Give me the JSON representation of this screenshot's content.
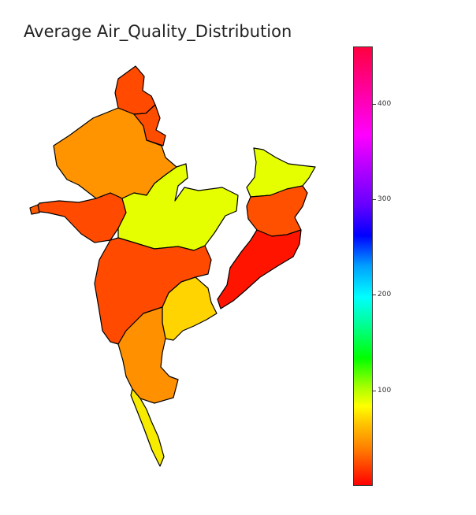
{
  "title": "Average Air_Quality_Distribution",
  "colorbar": {
    "vmin": 0,
    "vmax": 460,
    "ticks": [
      {
        "value": 100,
        "label": "100"
      },
      {
        "value": 200,
        "label": "200"
      },
      {
        "value": 300,
        "label": "300"
      },
      {
        "value": 400,
        "label": "400"
      }
    ],
    "colormap": "gist_rainbow_r"
  },
  "regions": [
    {
      "id": "jk",
      "value": 25,
      "color": "#ff4a00"
    },
    {
      "id": "hp",
      "value": 25,
      "color": "#ff4d00"
    },
    {
      "id": "rj",
      "value": 45,
      "color": "#ff9400"
    },
    {
      "id": "gj",
      "value": 25,
      "color": "#ff4a00"
    },
    {
      "id": "mp",
      "value": 90,
      "color": "#e6ff00"
    },
    {
      "id": "mh",
      "value": 25,
      "color": "#ff4a00"
    },
    {
      "id": "ka",
      "value": 40,
      "color": "#ff9000"
    },
    {
      "id": "ts",
      "value": 70,
      "color": "#ffd400"
    },
    {
      "id": "kl",
      "value": 75,
      "color": "#f7ec00"
    },
    {
      "id": "bh",
      "value": 90,
      "color": "#e6ff00"
    },
    {
      "id": "jh",
      "value": 25,
      "color": "#ff5000"
    },
    {
      "id": "or",
      "value": 8,
      "color": "#ff1400"
    },
    {
      "id": "gap",
      "value": 30,
      "color": "#ff5a00"
    }
  ]
}
